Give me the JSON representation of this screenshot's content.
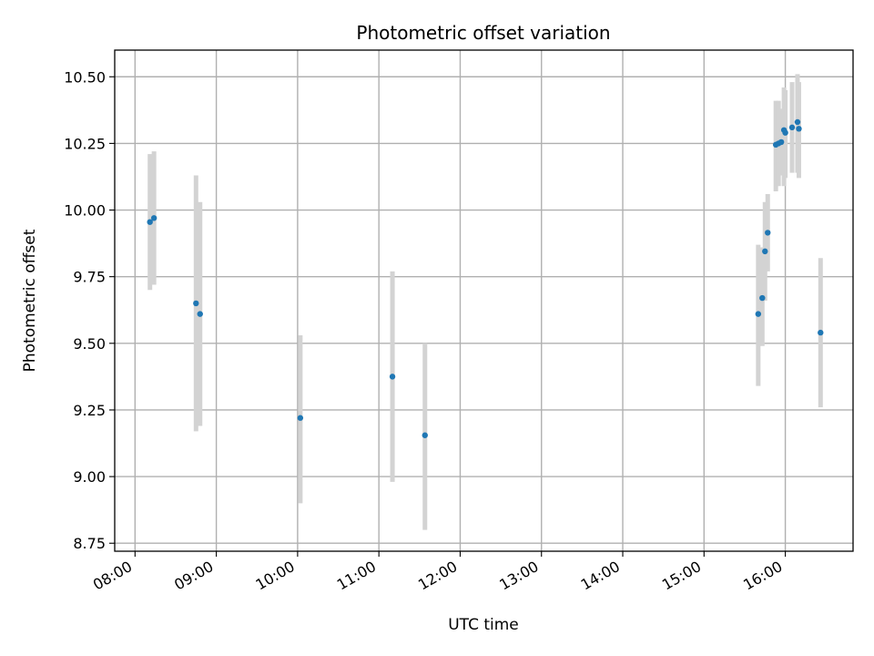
{
  "chart_data": {
    "type": "scatter",
    "title": "Photometric offset variation",
    "xlabel": "UTC time",
    "ylabel": "Photometric offset",
    "xlim": [
      "07:45",
      "16:50"
    ],
    "ylim": [
      8.72,
      10.6
    ],
    "x_ticks": [
      "08:00",
      "09:00",
      "10:00",
      "11:00",
      "12:00",
      "13:00",
      "14:00",
      "15:00",
      "16:00"
    ],
    "y_ticks": [
      "8.75",
      "9.00",
      "9.25",
      "9.50",
      "9.75",
      "10.00",
      "10.25",
      "10.50"
    ],
    "grid": true,
    "marker_color": "#1f77b4",
    "errorbar_color": "#d3d3d3",
    "series": [
      {
        "points": [
          {
            "x": "08:11",
            "y": 9.955,
            "ylow": 9.7,
            "yhigh": 10.21
          },
          {
            "x": "08:14",
            "y": 9.97,
            "ylow": 9.72,
            "yhigh": 10.22
          },
          {
            "x": "08:45",
            "y": 9.65,
            "ylow": 9.17,
            "yhigh": 10.13
          },
          {
            "x": "08:48",
            "y": 9.61,
            "ylow": 9.19,
            "yhigh": 10.03
          },
          {
            "x": "10:02",
            "y": 9.22,
            "ylow": 8.9,
            "yhigh": 9.53
          },
          {
            "x": "11:10",
            "y": 9.375,
            "ylow": 8.98,
            "yhigh": 9.77
          },
          {
            "x": "11:34",
            "y": 9.155,
            "ylow": 8.8,
            "yhigh": 9.5
          },
          {
            "x": "15:40",
            "y": 9.61,
            "ylow": 9.34,
            "yhigh": 9.87
          },
          {
            "x": "15:43",
            "y": 9.67,
            "ylow": 9.49,
            "yhigh": 9.86
          },
          {
            "x": "15:45",
            "y": 9.845,
            "ylow": 9.66,
            "yhigh": 10.03
          },
          {
            "x": "15:47",
            "y": 9.915,
            "ylow": 9.77,
            "yhigh": 10.06
          },
          {
            "x": "15:53",
            "y": 10.245,
            "ylow": 10.07,
            "yhigh": 10.41
          },
          {
            "x": "15:55",
            "y": 10.25,
            "ylow": 10.09,
            "yhigh": 10.41
          },
          {
            "x": "15:57",
            "y": 10.255,
            "ylow": 10.13,
            "yhigh": 10.38
          },
          {
            "x": "15:59",
            "y": 10.3,
            "ylow": 10.09,
            "yhigh": 10.46
          },
          {
            "x": "16:00",
            "y": 10.29,
            "ylow": 10.12,
            "yhigh": 10.45
          },
          {
            "x": "16:05",
            "y": 10.31,
            "ylow": 10.14,
            "yhigh": 10.48
          },
          {
            "x": "16:09",
            "y": 10.33,
            "ylow": 10.14,
            "yhigh": 10.51
          },
          {
            "x": "16:10",
            "y": 10.305,
            "ylow": 10.12,
            "yhigh": 10.48
          },
          {
            "x": "16:26",
            "y": 9.54,
            "ylow": 9.26,
            "yhigh": 9.82
          }
        ]
      }
    ]
  }
}
